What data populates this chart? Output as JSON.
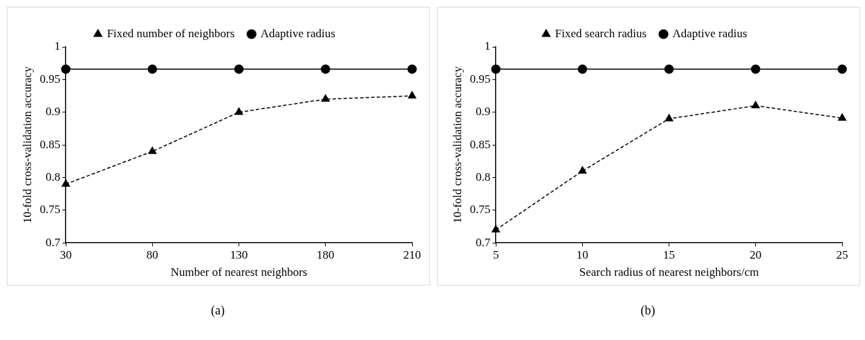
{
  "chart_data": [
    {
      "type": "line",
      "categories": [
        "30",
        "80",
        "130",
        "180",
        "210"
      ],
      "xlabel": "Number of nearest neighbors",
      "ylabel": "10-fold cross-validation accuracy",
      "ylim": [
        0.7,
        1
      ],
      "yticks": [
        0.7,
        0.75,
        0.8,
        0.85,
        0.9,
        0.95,
        1
      ],
      "grid": false,
      "legend": "top",
      "annotations": [
        "(a)"
      ],
      "series": [
        {
          "name": "Fixed number of neighbors",
          "color": "#000000",
          "marker": "triangle",
          "line_style": "dashed",
          "values": [
            0.79,
            0.84,
            0.9,
            0.92,
            0.925
          ]
        },
        {
          "name": "Adaptive radius",
          "color": "#000000",
          "marker": "circle",
          "line_style": "solid",
          "values": [
            0.966,
            0.966,
            0.966,
            0.966,
            0.966
          ]
        }
      ]
    },
    {
      "type": "line",
      "categories": [
        "5",
        "10",
        "15",
        "20",
        "25"
      ],
      "xlabel": "Search radius of nearest neighbors/cm",
      "ylabel": "10-fold cross-validation accuracy",
      "ylim": [
        0.7,
        1
      ],
      "yticks": [
        0.7,
        0.75,
        0.8,
        0.85,
        0.9,
        0.95,
        1
      ],
      "grid": false,
      "legend": "top",
      "annotations": [
        "(b)"
      ],
      "series": [
        {
          "name": "Fixed search radius",
          "color": "#000000",
          "marker": "triangle",
          "line_style": "dashed",
          "values": [
            0.72,
            0.81,
            0.89,
            0.91,
            0.891
          ]
        },
        {
          "name": "Adaptive radius",
          "color": "#000000",
          "marker": "circle",
          "line_style": "solid",
          "values": [
            0.966,
            0.966,
            0.966,
            0.966,
            0.966
          ]
        }
      ]
    }
  ]
}
